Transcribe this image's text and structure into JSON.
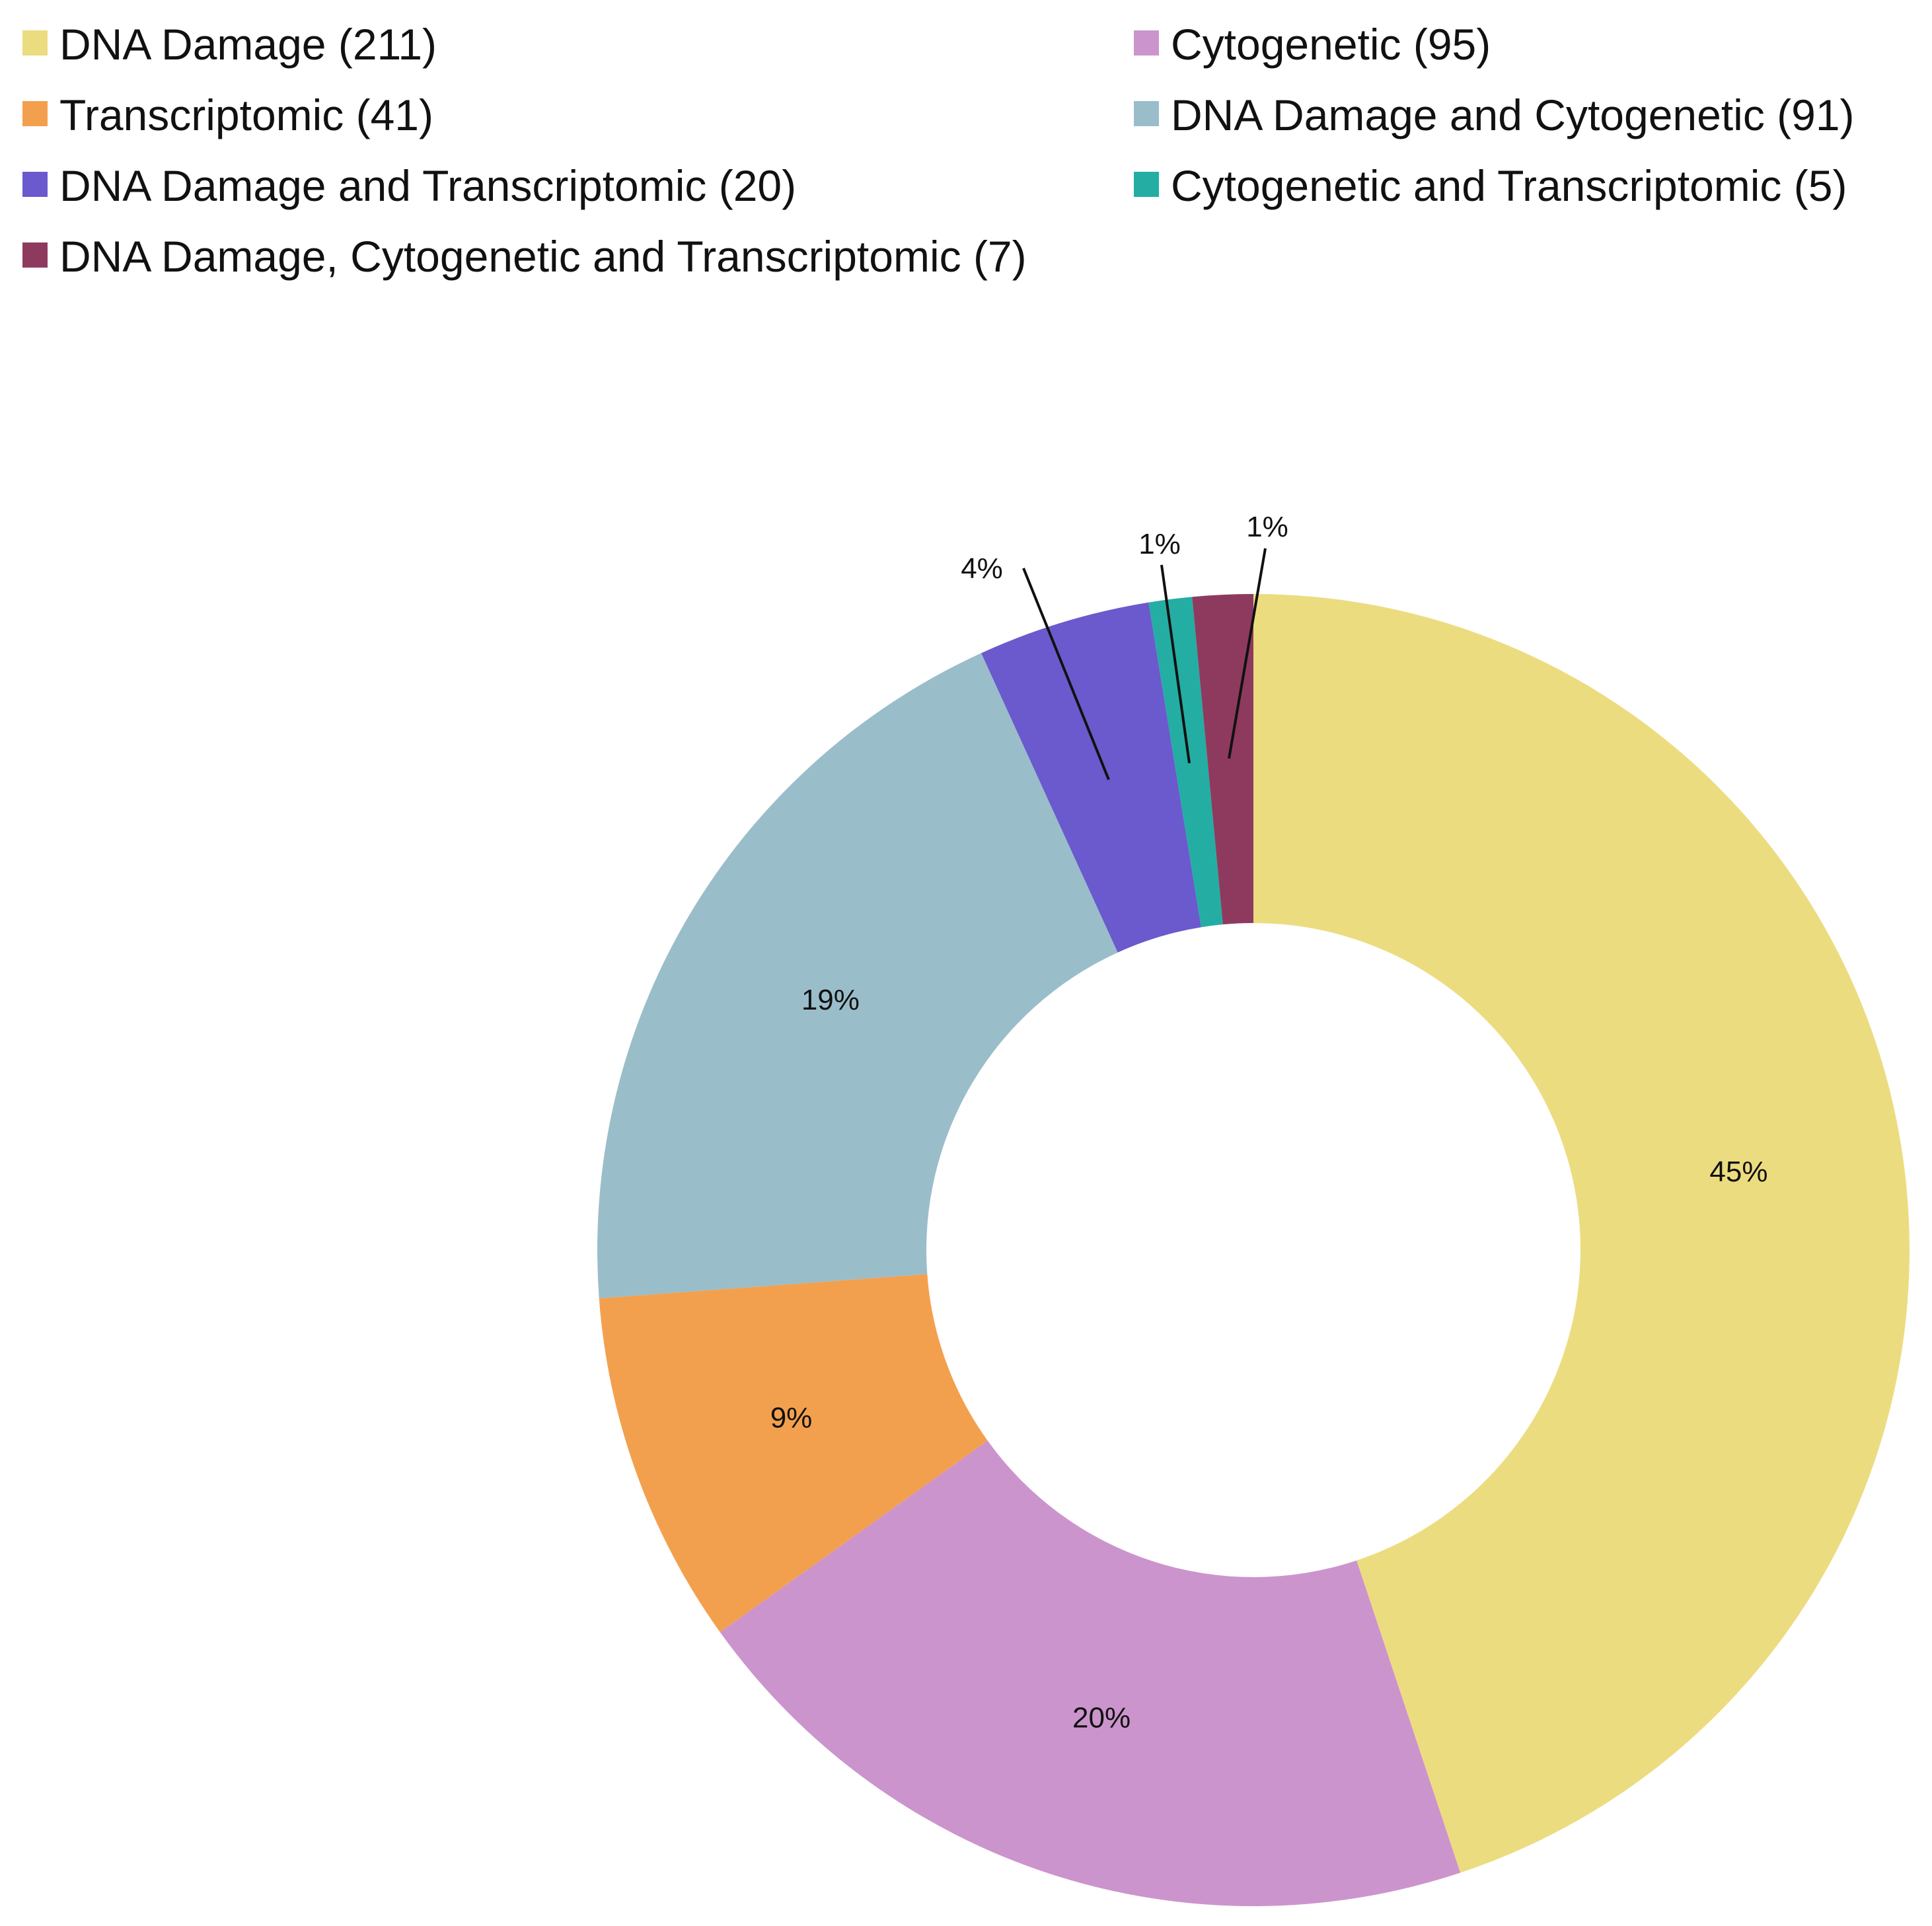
{
  "chart_data": {
    "type": "pie",
    "style": "donut",
    "title": "",
    "legend_position": "top",
    "slices": [
      {
        "label": "DNA Damage (211)",
        "value": 211,
        "percent_label": "45%",
        "color": "#ECDC80"
      },
      {
        "label": "Cytogenetic (95)",
        "value": 95,
        "percent_label": "20%",
        "color": "#CC94CC"
      },
      {
        "label": "Transcriptomic (41)",
        "value": 41,
        "percent_label": "9%",
        "color": "#F3A04E"
      },
      {
        "label": "DNA Damage and Cytogenetic (91)",
        "value": 91,
        "percent_label": "19%",
        "color": "#9ABDCA"
      },
      {
        "label": "DNA Damage and Transcriptomic (20)",
        "value": 20,
        "percent_label": "4%",
        "color": "#6A5ACD"
      },
      {
        "label": "Cytogenetic and Transcriptomic (5)",
        "value": 5,
        "percent_label": "1%",
        "color": "#24ADA3"
      },
      {
        "label": "DNA Damage, Cytogenetic and Transcriptomic (7)",
        "value": 7,
        "percent_label": "1%",
        "color": "#8E3A5E"
      }
    ]
  }
}
